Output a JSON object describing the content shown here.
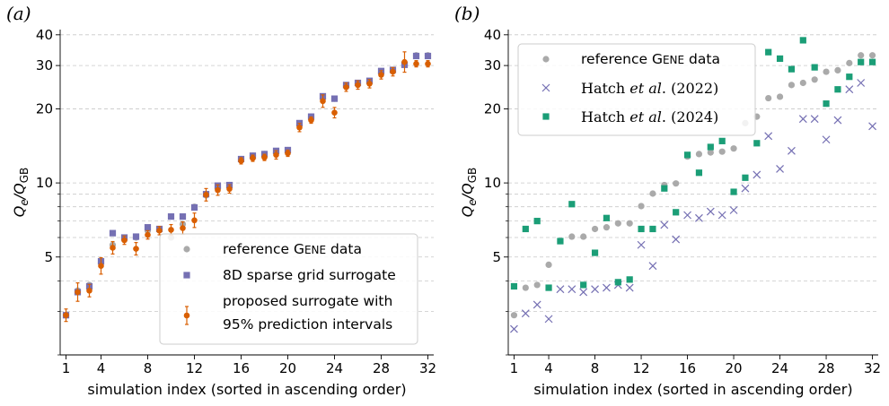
{
  "chart_data": [
    {
      "panel_label": "(a)",
      "type": "scatter",
      "xlabel": "simulation index (sorted in ascending order)",
      "ylabel": "Q_e/Q_GB",
      "ylabel_display": "Qe/QGB",
      "yscale": "log",
      "xlim": [
        0.5,
        32.5
      ],
      "ylim": [
        2.0,
        42
      ],
      "xticks": [
        1,
        4,
        8,
        12,
        16,
        20,
        24,
        28,
        32
      ],
      "yticks": [
        5,
        10,
        20,
        30,
        40
      ],
      "grid": "horizontal dashed",
      "legend_placement": "lower-right",
      "x": [
        1,
        2,
        3,
        4,
        5,
        6,
        7,
        8,
        9,
        10,
        11,
        12,
        13,
        14,
        15,
        16,
        17,
        18,
        19,
        20,
        21,
        22,
        23,
        24,
        25,
        26,
        27,
        28,
        29,
        30,
        31,
        32
      ],
      "series": [
        {
          "name": "reference GENE data",
          "name_display": "reference GENE data",
          "marker": "circle",
          "color": "#aaaaaa",
          "values": [
            2.9,
            3.65,
            3.85,
            4.75,
            5.6,
            5.95,
            6.0,
            6.4,
            6.45,
            6.0,
            6.8,
            8.0,
            8.9,
            9.5,
            9.8,
            12.5,
            12.9,
            13.1,
            13.3,
            13.6,
            17.2,
            18.5,
            22.0,
            22.0,
            24.8,
            25.3,
            25.8,
            28.0,
            28.5,
            30.5,
            33.0,
            33.0
          ]
        },
        {
          "name": "8D sparse grid surrogate",
          "name_display": "8D sparse grid surrogate",
          "marker": "square",
          "color": "#7570b3",
          "values": [
            2.9,
            3.6,
            3.8,
            4.8,
            6.25,
            6.0,
            6.05,
            6.6,
            6.5,
            7.3,
            7.3,
            7.95,
            9.0,
            9.75,
            9.8,
            12.5,
            12.9,
            13.1,
            13.5,
            13.6,
            17.5,
            18.6,
            22.5,
            22.0,
            25.0,
            25.5,
            26.0,
            28.5,
            28.8,
            30.2,
            32.8,
            32.8
          ]
        },
        {
          "name": "proposed surrogate with 95% prediction intervals",
          "name_display_line1": "proposed surrogate with",
          "name_display_line2": "95% prediction intervals",
          "marker": "circle-errorbar",
          "color": "#d95f02",
          "values": [
            2.9,
            3.6,
            3.65,
            4.6,
            5.45,
            5.85,
            5.4,
            6.15,
            6.4,
            6.45,
            6.55,
            7.05,
            8.95,
            9.35,
            9.45,
            12.3,
            12.6,
            12.7,
            13.0,
            13.2,
            16.8,
            18.0,
            21.5,
            19.3,
            24.5,
            25.0,
            25.3,
            27.5,
            28.3,
            31.0,
            30.5,
            30.5
          ],
          "err_rel": [
            0.06,
            0.09,
            0.06,
            0.08,
            0.06,
            0.04,
            0.06,
            0.04,
            0.04,
            0.05,
            0.06,
            0.07,
            0.06,
            0.05,
            0.04,
            0.03,
            0.03,
            0.03,
            0.04,
            0.03,
            0.04,
            0.03,
            0.06,
            0.05,
            0.04,
            0.04,
            0.04,
            0.04,
            0.04,
            0.1,
            0.03,
            0.03
          ]
        }
      ]
    },
    {
      "panel_label": "(b)",
      "type": "scatter",
      "xlabel": "simulation index (sorted in ascending order)",
      "ylabel": "Q_e/Q_GB",
      "ylabel_display": "Qe/QGB",
      "yscale": "log",
      "xlim": [
        0.5,
        32.5
      ],
      "ylim": [
        2.0,
        42
      ],
      "xticks": [
        1,
        4,
        8,
        12,
        16,
        20,
        24,
        28,
        32
      ],
      "yticks": [
        5,
        10,
        20,
        30,
        40
      ],
      "grid": "horizontal dashed",
      "legend_placement": "upper-left",
      "x": [
        1,
        2,
        3,
        4,
        5,
        6,
        7,
        8,
        9,
        10,
        11,
        12,
        13,
        14,
        15,
        16,
        17,
        18,
        19,
        20,
        21,
        22,
        23,
        24,
        25,
        26,
        27,
        28,
        29,
        30,
        31,
        32
      ],
      "series": [
        {
          "name": "reference GENE data",
          "name_display": "reference GENE data",
          "marker": "circle",
          "color": "#aaaaaa",
          "values": [
            2.9,
            3.75,
            3.85,
            4.65,
            5.8,
            6.05,
            6.05,
            6.5,
            6.6,
            6.85,
            6.85,
            8.05,
            9.05,
            9.8,
            9.95,
            12.8,
            13.1,
            13.3,
            13.4,
            13.8,
            17.5,
            18.6,
            22.1,
            22.4,
            25.0,
            25.5,
            26.3,
            28.3,
            28.7,
            30.7,
            33.0,
            33.0
          ]
        },
        {
          "name": "Hatch et al. (2022)",
          "name_display": "Hatch et al. (2022)",
          "marker": "x",
          "color": "#7570b3",
          "values": [
            2.55,
            2.95,
            3.2,
            2.8,
            3.7,
            3.7,
            3.6,
            3.7,
            3.75,
            3.85,
            3.75,
            5.6,
            4.6,
            6.75,
            5.9,
            7.4,
            7.2,
            7.65,
            7.4,
            7.75,
            9.5,
            10.8,
            15.5,
            11.4,
            13.5,
            18.2,
            18.2,
            15.0,
            18.0,
            24.0,
            25.5,
            17.0
          ]
        },
        {
          "name": "Hatch et al. (2024)",
          "name_display": "Hatch et al. (2024)",
          "marker": "square",
          "color": "#1b9e77",
          "values": [
            3.8,
            6.5,
            7.0,
            3.75,
            5.8,
            8.2,
            3.85,
            5.2,
            7.2,
            3.95,
            4.05,
            6.5,
            6.5,
            9.5,
            7.6,
            13.0,
            11.0,
            14.0,
            14.8,
            9.2,
            10.5,
            14.5,
            34.0,
            32.0,
            29.0,
            38.0,
            29.5,
            21.0,
            24.0,
            27.0,
            31.0,
            31.0
          ]
        }
      ]
    }
  ]
}
